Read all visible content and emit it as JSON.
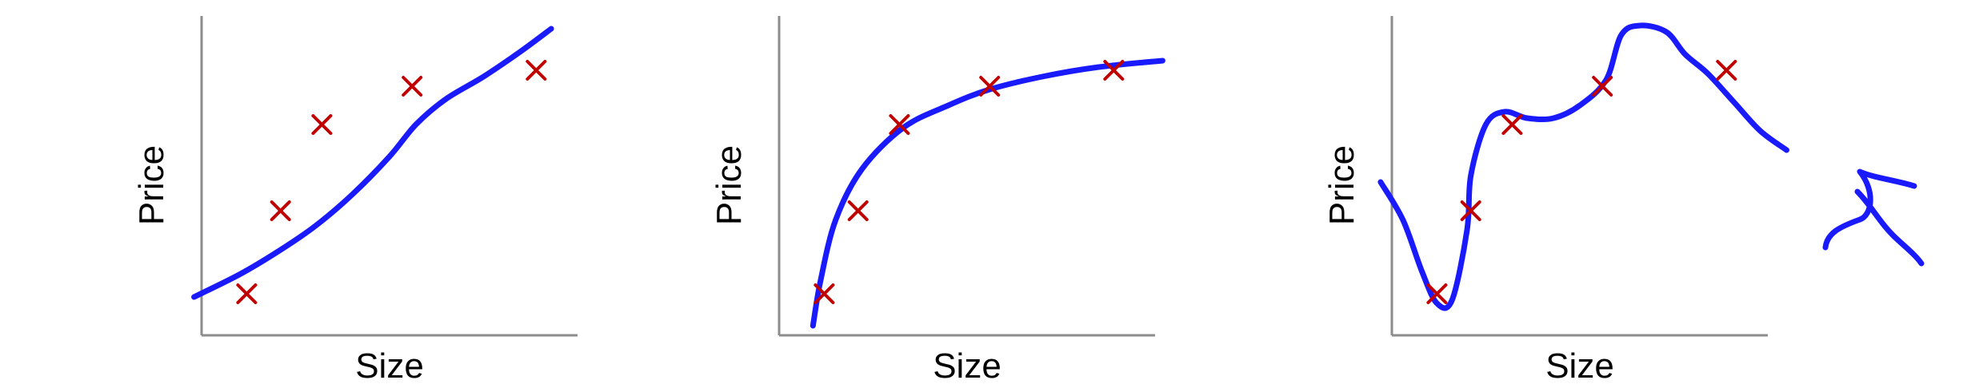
{
  "colors": {
    "curve": "#1a1aff",
    "marker": "#c00000",
    "axis": "#8c8c8c",
    "background": "#ffffff"
  },
  "chart_data": [
    {
      "type": "scatter",
      "xlabel": "Size",
      "ylabel": "Price",
      "xlim": [
        0,
        10
      ],
      "ylim": [
        0,
        10
      ],
      "grid": false,
      "legend": "none",
      "points": {
        "x": [
          1.2,
          2.1,
          3.2,
          5.6,
          8.9
        ],
        "y": [
          1.3,
          3.9,
          6.6,
          7.8,
          8.3
        ]
      },
      "fit_curve": {
        "x": [
          -0.2,
          1.0,
          2.0,
          3.0,
          4.0,
          5.0,
          5.7,
          6.5,
          7.5,
          8.5,
          9.3
        ],
        "y": [
          1.2,
          1.9,
          2.6,
          3.4,
          4.4,
          5.6,
          6.6,
          7.4,
          8.1,
          8.9,
          9.6
        ]
      }
    },
    {
      "type": "scatter",
      "xlabel": "Size",
      "ylabel": "Price",
      "xlim": [
        0,
        10
      ],
      "ylim": [
        0,
        10
      ],
      "grid": false,
      "legend": "none",
      "points": {
        "x": [
          1.2,
          2.1,
          3.2,
          5.6,
          8.9
        ],
        "y": [
          1.3,
          3.9,
          6.6,
          7.8,
          8.3
        ]
      },
      "fit_curve": {
        "x": [
          0.9,
          1.1,
          1.5,
          2.2,
          3.3,
          4.5,
          5.6,
          7.0,
          8.5,
          10.2
        ],
        "y": [
          0.3,
          1.7,
          3.6,
          5.2,
          6.5,
          7.2,
          7.7,
          8.1,
          8.4,
          8.6
        ]
      }
    },
    {
      "type": "scatter",
      "xlabel": "Size",
      "ylabel": "Price",
      "xlim": [
        0,
        10
      ],
      "ylim": [
        0,
        10
      ],
      "grid": false,
      "legend": "none",
      "points": {
        "x": [
          1.2,
          2.1,
          3.2,
          5.6,
          8.9
        ],
        "y": [
          1.3,
          3.9,
          6.6,
          7.8,
          8.3
        ]
      },
      "fit_curve": {
        "x": [
          -0.3,
          0.3,
          0.8,
          1.2,
          1.6,
          2.0,
          2.1,
          2.5,
          3.0,
          3.6,
          4.3,
          5.0,
          5.7,
          6.1,
          6.6,
          7.3,
          7.8,
          8.4,
          9.1,
          9.8,
          10.5
        ],
        "y": [
          4.8,
          3.6,
          2.0,
          1.0,
          1.1,
          3.3,
          5.0,
          6.6,
          7.0,
          6.8,
          6.8,
          7.2,
          8.0,
          9.4,
          9.7,
          9.5,
          8.8,
          8.2,
          7.3,
          6.4,
          5.8
        ]
      }
    }
  ]
}
